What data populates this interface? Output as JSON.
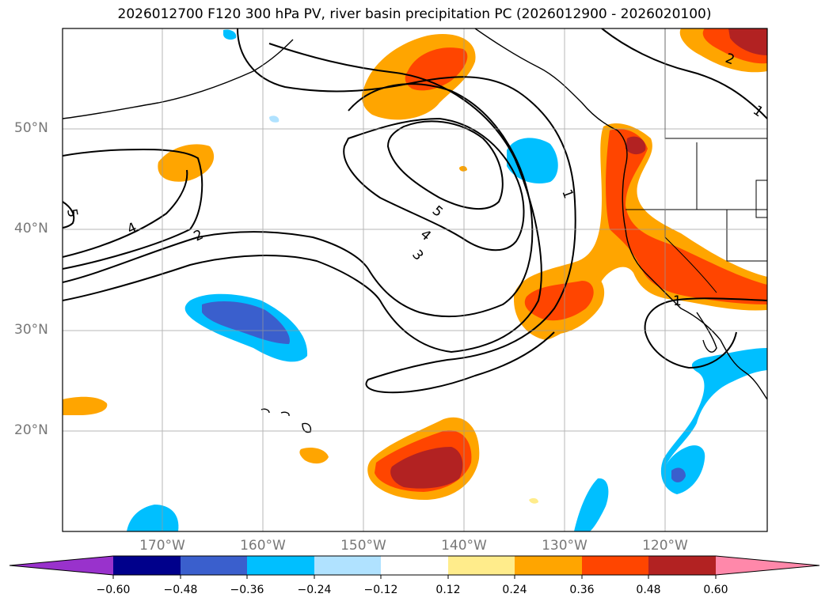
{
  "title": "2026012700 F120 300 hPa PV, river basin precipitation PC (2026012900 - 2026020100)",
  "axes": {
    "lat_labels": [
      "20°N",
      "30°N",
      "40°N",
      "50°N"
    ],
    "lon_labels": [
      "170°W",
      "160°W",
      "150°W",
      "140°W",
      "130°W",
      "120°W"
    ],
    "grid": true
  },
  "contour_labels": [
    "1",
    "1",
    "2",
    "2",
    "3",
    "4",
    "4",
    "5",
    "5"
  ],
  "colorbar": {
    "ticks": [
      "−0.60",
      "−0.48",
      "−0.36",
      "−0.24",
      "−0.12",
      "0.12",
      "0.24",
      "0.36",
      "0.48",
      "0.60"
    ],
    "colors": [
      "#9932cc",
      "#00008b",
      "#3a5fcd",
      "#00bfff",
      "#b0e2ff",
      "#ffffff",
      "#ffec8b",
      "#ffa500",
      "#ff4500",
      "#b22222",
      "#ff88aa"
    ],
    "extend": "both"
  }
}
